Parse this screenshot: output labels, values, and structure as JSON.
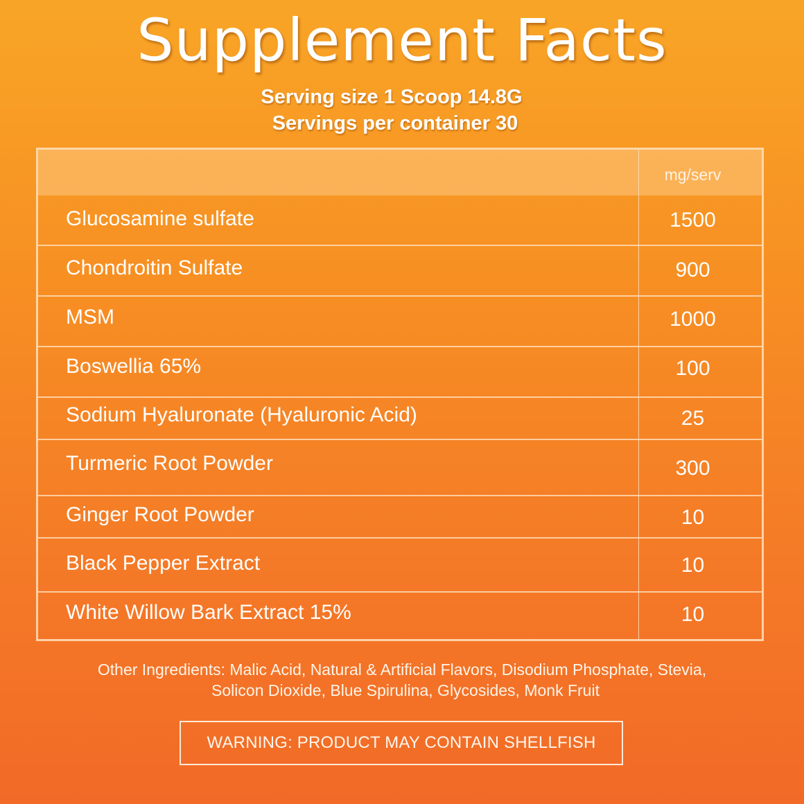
{
  "title": "Supplement Facts",
  "serving": {
    "size": "Serving size 1 Scoop 14.8G",
    "per_container": "Servings per container 30"
  },
  "table": {
    "unit_header": "mg/serv",
    "rows": [
      {
        "name": "Glucosamine sulfate",
        "amount": "1500"
      },
      {
        "name": "Chondroitin Sulfate",
        "amount": "900"
      },
      {
        "name": "MSM",
        "amount": "1000"
      },
      {
        "name": "Boswellia 65%",
        "amount": "100"
      },
      {
        "name": "Sodium Hyaluronate (Hyaluronic Acid)",
        "amount": "25"
      },
      {
        "name": "Turmeric Root Powder",
        "amount": "300"
      },
      {
        "name": "Ginger Root Powder",
        "amount": "10"
      },
      {
        "name": "Black Pepper Extract",
        "amount": "10"
      },
      {
        "name": "White Willow Bark Extract 15%",
        "amount": "10"
      }
    ]
  },
  "other_ingredients": {
    "line1": "Other Ingredients: Malic Acid, Natural & Artificial Flavors, Disodium Phosphate, Stevia,",
    "line2": "Solicon Dioxide, Blue Spirulina, Glycosides, Monk Fruit"
  },
  "warning": "WARNING: PRODUCT MAY CONTAIN SHELLFISH",
  "colors": {
    "background_top": "#f8a526",
    "background_bottom": "#f26a27",
    "text": "#ffffff"
  }
}
